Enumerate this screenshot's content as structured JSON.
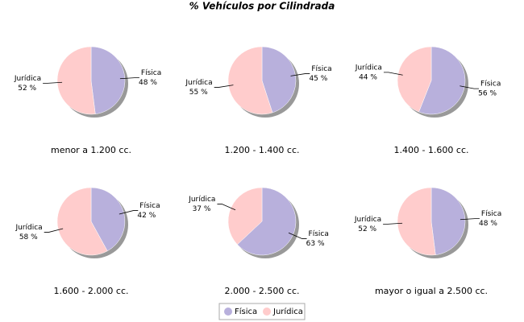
{
  "title": "% Vehículos por Cilindrada",
  "chart_data": [
    {
      "type": "pie",
      "title": "menor a 1.200 cc.",
      "categories": [
        "Física",
        "Jurídica"
      ],
      "values": [
        48,
        52
      ],
      "value_labels": [
        "48 %",
        "52 %"
      ],
      "colors": [
        "#b8b0dc",
        "#ffcccc"
      ]
    },
    {
      "type": "pie",
      "title": "1.200 - 1.400 cc.",
      "categories": [
        "Física",
        "Jurídica"
      ],
      "values": [
        45,
        55
      ],
      "value_labels": [
        "45 %",
        "55 %"
      ],
      "colors": [
        "#b8b0dc",
        "#ffcccc"
      ]
    },
    {
      "type": "pie",
      "title": "1.400 - 1.600 cc.",
      "categories": [
        "Física",
        "Jurídica"
      ],
      "values": [
        56,
        44
      ],
      "value_labels": [
        "56 %",
        "44 %"
      ],
      "colors": [
        "#b8b0dc",
        "#ffcccc"
      ]
    },
    {
      "type": "pie",
      "title": "1.600 - 2.000 cc.",
      "categories": [
        "Física",
        "Jurídica"
      ],
      "values": [
        42,
        58
      ],
      "value_labels": [
        "42 %",
        "58 %"
      ],
      "colors": [
        "#b8b0dc",
        "#ffcccc"
      ]
    },
    {
      "type": "pie",
      "title": "2.000 - 2.500 cc.",
      "categories": [
        "Física",
        "Jurídica"
      ],
      "values": [
        63,
        37
      ],
      "value_labels": [
        "63 %",
        "37 %"
      ],
      "colors": [
        "#b8b0dc",
        "#ffcccc"
      ]
    },
    {
      "type": "pie",
      "title": "mayor o igual a 2.500 cc.",
      "categories": [
        "Física",
        "Jurídica"
      ],
      "values": [
        48,
        52
      ],
      "value_labels": [
        "48 %",
        "52 %"
      ],
      "colors": [
        "#b8b0dc",
        "#ffcccc"
      ]
    }
  ]
}
